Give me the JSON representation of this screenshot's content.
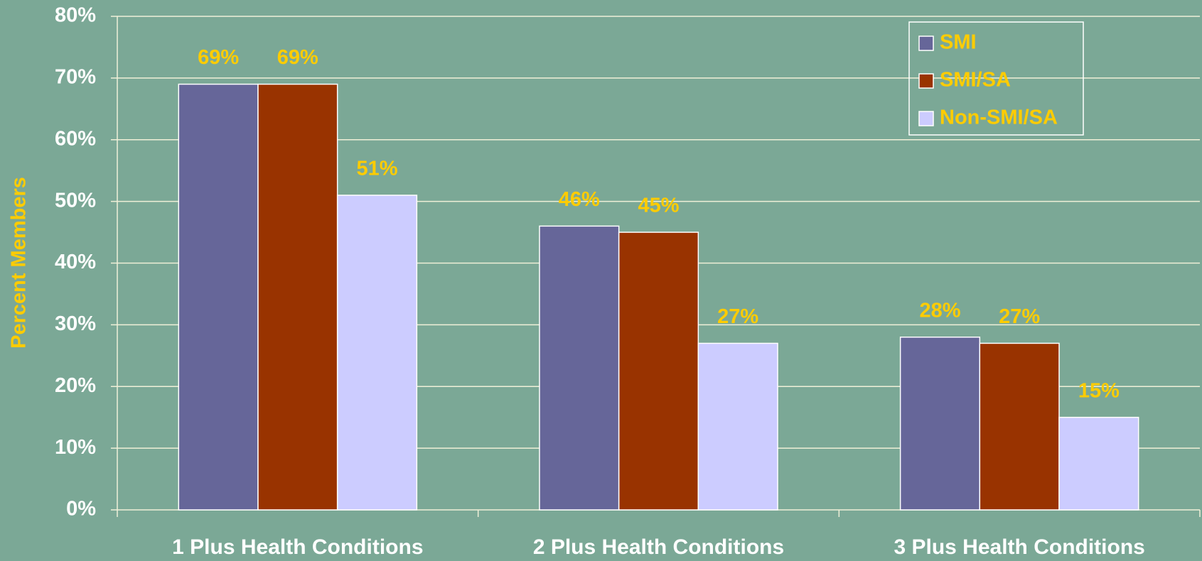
{
  "chart_data": {
    "type": "bar",
    "y_axis_label": "Percent Members",
    "categories": [
      "1 Plus Health Conditions",
      "2 Plus Health Conditions",
      "3 Plus Health Conditions"
    ],
    "series": [
      {
        "name": "SMI",
        "color": "#666699",
        "values": [
          69,
          46,
          28
        ],
        "value_labels": [
          "69%",
          "46%",
          "28%"
        ]
      },
      {
        "name": "SMI/SA",
        "color": "#993300",
        "values": [
          69,
          45,
          27
        ],
        "value_labels": [
          "69%",
          "45%",
          "27%"
        ]
      },
      {
        "name": "Non-SMI/SA",
        "color": "#CCCCFF",
        "values": [
          51,
          27,
          15
        ],
        "value_labels": [
          "51%",
          "27%",
          "15%"
        ]
      }
    ],
    "ylim": [
      0,
      80
    ],
    "yticks": [
      {
        "value": 0,
        "label": "0%"
      },
      {
        "value": 10,
        "label": "10%"
      },
      {
        "value": 20,
        "label": "20%"
      },
      {
        "value": 30,
        "label": "30%"
      },
      {
        "value": 40,
        "label": "40%"
      },
      {
        "value": 50,
        "label": "50%"
      },
      {
        "value": 60,
        "label": "60%"
      },
      {
        "value": 70,
        "label": "70%"
      },
      {
        "value": 80,
        "label": "80%"
      }
    ],
    "grid": true,
    "legend": "top-right"
  }
}
